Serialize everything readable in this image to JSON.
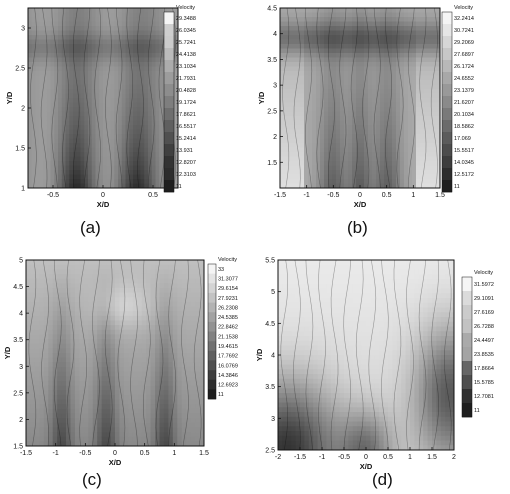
{
  "chart_data": [
    {
      "type": "heatmap",
      "caption": "(a)",
      "xlabel": "X/D",
      "ylabel": "Y/D",
      "xlim": [
        -0.75,
        0.75
      ],
      "ylim": [
        1,
        3.25
      ],
      "xticks": [
        "-0.5",
        "0",
        "0.5"
      ],
      "yticks": [
        "1",
        "1.5",
        "2",
        "2.5",
        "3"
      ],
      "legend_title": "Velocity",
      "legend_values": [
        "29.3488",
        "26.0345",
        "25.7241",
        "24.4138",
        "23.1034",
        "21.7931",
        "20.4828",
        "19.1724",
        "17.8621",
        "16.5517",
        "15.2414",
        "13.931",
        "12.8207",
        "12.3103",
        "11"
      ],
      "legend_position": "right",
      "vmin": 11,
      "vmax": 29.35
    },
    {
      "type": "heatmap",
      "caption": "(b)",
      "xlabel": "X/D",
      "ylabel": "Y/D",
      "xlim": [
        -1.5,
        1.5
      ],
      "ylim": [
        1,
        4.5
      ],
      "xticks": [
        "-1.5",
        "-1",
        "-0.5",
        "0",
        "0.5",
        "1",
        "1.5"
      ],
      "yticks": [
        "1.5",
        "2",
        "2.5",
        "3",
        "3.5",
        "4",
        "4.5"
      ],
      "legend_title": "Velocity",
      "legend_values": [
        "32.2414",
        "30.7241",
        "29.2069",
        "27.6897",
        "26.1724",
        "24.6552",
        "23.1379",
        "21.6207",
        "20.1034",
        "18.5862",
        "17.069",
        "15.5517",
        "14.0345",
        "12.5172",
        "11"
      ],
      "legend_position": "right",
      "vmin": 11,
      "vmax": 32.24
    },
    {
      "type": "heatmap",
      "caption": "(c)",
      "xlabel": "X/D",
      "ylabel": "Y/D",
      "xlim": [
        -1.5,
        1.5
      ],
      "ylim": [
        1.5,
        5
      ],
      "xticks": [
        "-1.5",
        "-1",
        "-0.5",
        "0",
        "0.5",
        "1",
        "1.5"
      ],
      "yticks": [
        "1.5",
        "2",
        "2.5",
        "3",
        "3.5",
        "4",
        "4.5",
        "5"
      ],
      "legend_title": "Velocity",
      "legend_values": [
        "33",
        "31.3077",
        "29.6154",
        "27.9231",
        "26.2308",
        "24.5385",
        "22.8462",
        "21.1538",
        "19.4615",
        "17.7692",
        "16.0769",
        "14.3846",
        "12.6923",
        "11"
      ],
      "legend_position": "right",
      "vmin": 11,
      "vmax": 33
    },
    {
      "type": "heatmap",
      "caption": "(d)",
      "xlabel": "X/D",
      "ylabel": "Y/D",
      "xlim": [
        -2,
        2
      ],
      "ylim": [
        2.5,
        5.5
      ],
      "xticks": [
        "-2",
        "-1.5",
        "-1",
        "-0.5",
        "0",
        "0.5",
        "1",
        "1.5",
        "2"
      ],
      "yticks": [
        "2.5",
        "3",
        "3.5",
        "4",
        "4.5",
        "5",
        "5.5"
      ],
      "legend_title": "Velocity",
      "legend_values": [
        "31.5972",
        "29.1091",
        "27.6169",
        "26.7288",
        "24.4497",
        "23.8535",
        "17.8664",
        "15.5785",
        "12.7081",
        "11"
      ],
      "legend_position": "right",
      "vmin": 11,
      "vmax": 31.6
    }
  ]
}
